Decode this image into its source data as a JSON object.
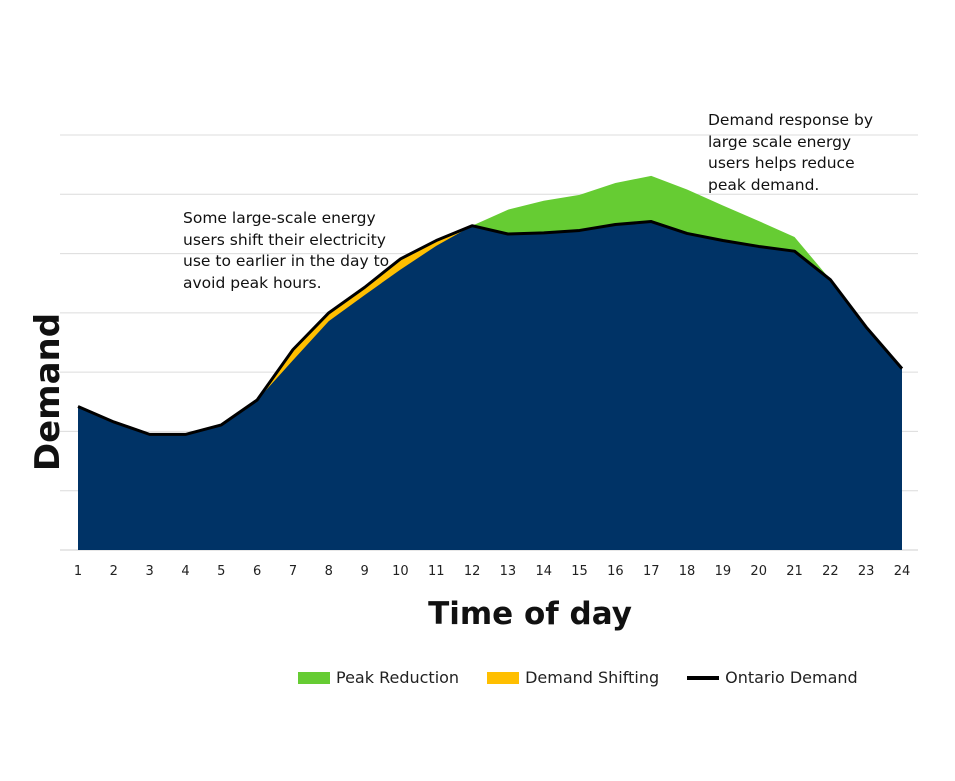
{
  "chart_data": {
    "type": "area",
    "xlabel": "Time of day",
    "ylabel": "Demand",
    "x": [
      1,
      2,
      3,
      4,
      5,
      6,
      7,
      8,
      9,
      10,
      11,
      12,
      13,
      14,
      15,
      16,
      17,
      18,
      19,
      20,
      21,
      22,
      23,
      24
    ],
    "ylim": [
      0,
      7
    ],
    "grid": true,
    "legend_position": "bottom",
    "series": [
      {
        "name": "Peak Reduction",
        "color": "#66CC33",
        "values": [
          2.42,
          2.16,
          1.95,
          1.95,
          2.11,
          2.53,
          3.38,
          4.0,
          4.43,
          4.91,
          5.22,
          5.47,
          5.74,
          5.89,
          5.99,
          6.19,
          6.31,
          6.08,
          5.81,
          5.55,
          5.28,
          4.56,
          3.76,
          3.06
        ]
      },
      {
        "name": "Demand Shifting",
        "color": "#FFBF00",
        "values": [
          2.42,
          2.16,
          1.95,
          1.95,
          2.11,
          2.53,
          3.2,
          3.86,
          4.3,
          4.73,
          5.13,
          5.47,
          5.33,
          5.35,
          5.39,
          5.49,
          5.54,
          5.34,
          5.22,
          5.12,
          5.04,
          4.56,
          3.76,
          3.06
        ]
      },
      {
        "name": "Ontario Demand",
        "color": "#000000",
        "values": [
          2.42,
          2.16,
          1.95,
          1.95,
          2.11,
          2.53,
          3.38,
          4.0,
          4.43,
          4.91,
          5.22,
          5.47,
          5.33,
          5.35,
          5.39,
          5.49,
          5.54,
          5.34,
          5.22,
          5.12,
          5.04,
          4.56,
          3.76,
          3.06
        ]
      }
    ],
    "fill_color": "#003366",
    "annotations": [
      "Some large-scale energy users shift their electricity use to earlier in the day to avoid peak hours.",
      "Demand response by large scale energy users helps reduce peak demand."
    ]
  }
}
